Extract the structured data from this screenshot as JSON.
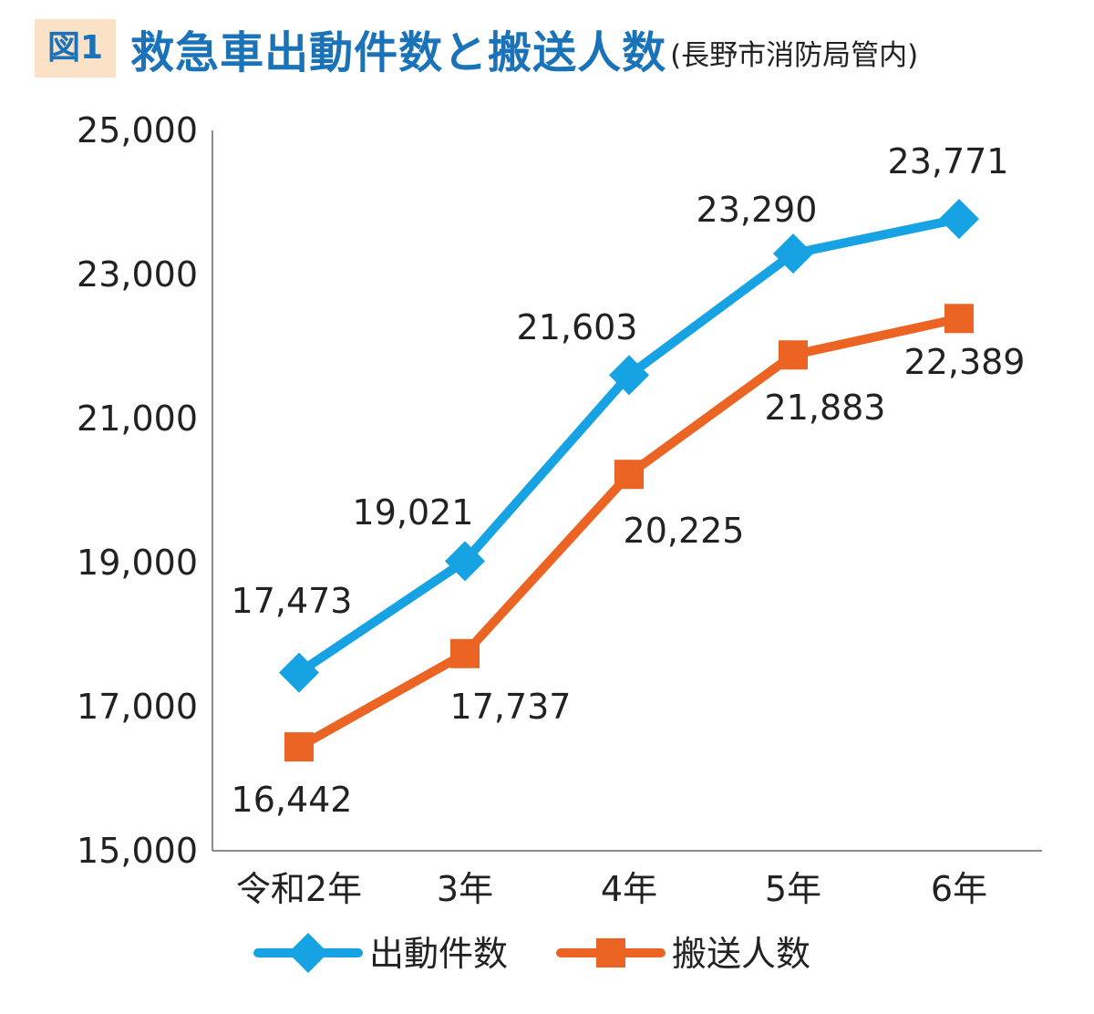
{
  "header": {
    "figure_label": "図1",
    "title": "救急車出動件数と搬送人数",
    "subtitle": "(長野市消防局管内)"
  },
  "colors": {
    "dispatch": "#16a2e3",
    "transport": "#ec6423",
    "axis": "#666666",
    "title": "#1a72b8",
    "badge_bg": "#fbe2c6"
  },
  "chart_data": {
    "type": "line",
    "categories": [
      "令和2年",
      "3年",
      "4年",
      "5年",
      "6年"
    ],
    "series": [
      {
        "name": "出動件数",
        "marker": "diamond",
        "values": [
          17473,
          19021,
          21603,
          23290,
          23771
        ]
      },
      {
        "name": "搬送人数",
        "marker": "square",
        "values": [
          16442,
          17737,
          20225,
          21883,
          22389
        ]
      }
    ],
    "ylim": [
      15000,
      25000
    ],
    "yticks": [
      15000,
      17000,
      19000,
      21000,
      23000,
      25000
    ],
    "ytick_labels": [
      "15,000",
      "17,000",
      "19,000",
      "21,000",
      "23,000",
      "25,000"
    ],
    "data_labels": [
      [
        "17,473",
        "19,021",
        "21,603",
        "23,290",
        "23,771"
      ],
      [
        "16,442",
        "17,737",
        "20,225",
        "21,883",
        "22,389"
      ]
    ],
    "grid": false,
    "legend": "bottom"
  }
}
